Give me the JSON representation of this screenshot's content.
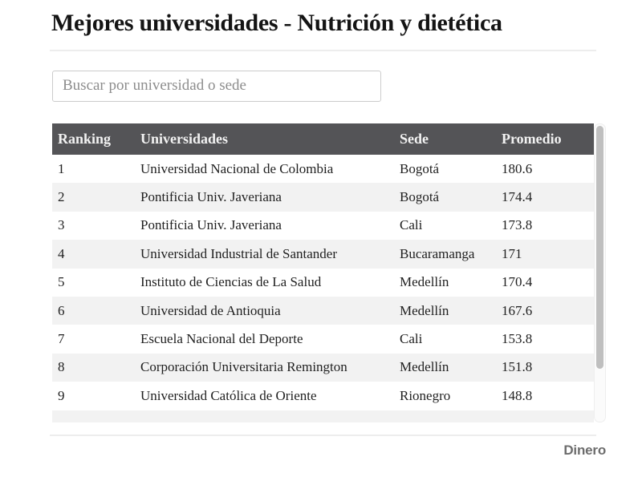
{
  "header": {
    "title": "Mejores universidades - Nutrición y dietética"
  },
  "search": {
    "placeholder": "Buscar por universidad o sede",
    "value": ""
  },
  "table": {
    "columns": [
      "Ranking",
      "Universidades",
      "Sede",
      "Promedio"
    ],
    "rows": [
      {
        "ranking": "1",
        "universidad": "Universidad Nacional de Colombia",
        "sede": "Bogotá",
        "promedio": "180.6"
      },
      {
        "ranking": "2",
        "universidad": "Pontificia Univ. Javeriana",
        "sede": "Bogotá",
        "promedio": "174.4"
      },
      {
        "ranking": "3",
        "universidad": "Pontificia Univ. Javeriana",
        "sede": "Cali",
        "promedio": "173.8"
      },
      {
        "ranking": "4",
        "universidad": "Universidad Industrial de Santander",
        "sede": "Bucaramanga",
        "promedio": "171"
      },
      {
        "ranking": "5",
        "universidad": "Instituto de Ciencias de La Salud",
        "sede": "Medellín",
        "promedio": "170.4"
      },
      {
        "ranking": "6",
        "universidad": "Universidad de Antioquia",
        "sede": "Medellín",
        "promedio": "167.6"
      },
      {
        "ranking": "7",
        "universidad": "Escuela Nacional del Deporte",
        "sede": "Cali",
        "promedio": "153.8"
      },
      {
        "ranking": "8",
        "universidad": "Corporación Universitaria Remington",
        "sede": "Medellín",
        "promedio": "151.8"
      },
      {
        "ranking": "9",
        "universidad": "Universidad Católica de Oriente",
        "sede": "Rionegro",
        "promedio": "148.8"
      }
    ],
    "partial_row_visible": true
  },
  "footer": {
    "brand": "Dinero"
  },
  "colors": {
    "header_bg": "#545457",
    "header_text": "#f2f2f2",
    "row_stripe": "#f2f2f2",
    "body_text": "#1f1f1f",
    "scrollbar_thumb": "#bfbfbf",
    "brand_text": "#6d6d6d"
  }
}
